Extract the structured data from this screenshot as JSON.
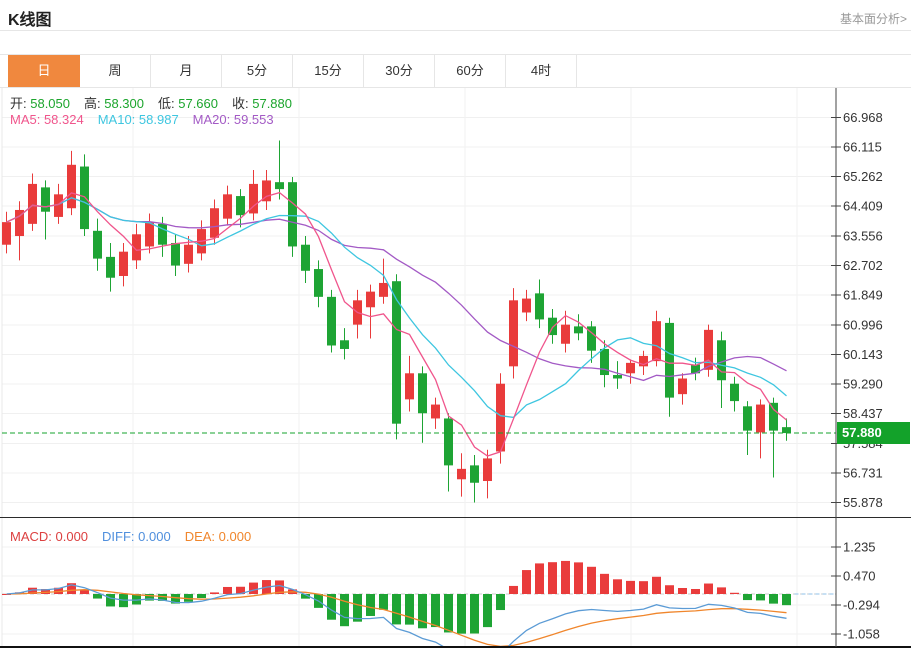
{
  "header": {
    "title": "K线图",
    "link": "基本面分析>"
  },
  "tabs": {
    "items": [
      "日",
      "周",
      "月",
      "5分",
      "15分",
      "30分",
      "60分",
      "4时"
    ],
    "active_index": 0
  },
  "main_chart": {
    "ohlc_labels": [
      {
        "label": "开:",
        "value": "58.050"
      },
      {
        "label": "高:",
        "value": "58.300"
      },
      {
        "label": "低:",
        "value": "57.660"
      },
      {
        "label": "收:",
        "value": "57.880"
      }
    ],
    "ohlc_value_color": "#1ca52d",
    "ma_labels": [
      {
        "label": "MA5:",
        "value": "58.324",
        "color": "#f0558c"
      },
      {
        "label": "MA10:",
        "value": "58.987",
        "color": "#3ec6e0"
      },
      {
        "label": "MA20:",
        "value": "59.553",
        "color": "#a35ac5"
      }
    ],
    "price_badge": "57.880"
  },
  "macd_panel": {
    "labels": [
      {
        "label": "MACD:",
        "value": "0.000",
        "color": "#dc4040"
      },
      {
        "label": "DIFF:",
        "value": "0.000",
        "color": "#4f8fdd"
      },
      {
        "label": "DEA:",
        "value": "0.000",
        "color": "#f0862c"
      }
    ]
  },
  "colors": {
    "accent": "#f0883e",
    "up": "#e93b3b",
    "down": "#1ea434",
    "ma5": "#f0558c",
    "ma10": "#3ec6e0",
    "ma20": "#a35ac5",
    "diff_line": "#5b9bd5",
    "dea_line": "#f0862c",
    "price_line": "#15a32d",
    "badge": "#13a22a",
    "link": "#999999"
  },
  "chart_data": {
    "type": "candlestick",
    "subpanel": "MACD(12,26,9)",
    "overlays": [
      "MA5",
      "MA10",
      "MA20"
    ],
    "current_price": 57.88,
    "price_ticks": [
      "66.968",
      "66.115",
      "65.262",
      "64.409",
      "63.556",
      "62.702",
      "61.849",
      "60.996",
      "60.143",
      "59.290",
      "58.437",
      "57.584",
      "56.731",
      "55.878"
    ],
    "macd_ticks": [
      "1.235",
      "0.470",
      "-0.294",
      "-1.058"
    ],
    "price_range": [
      55.45,
      67.81
    ],
    "macd_range": [
      -1.4,
      2.03
    ],
    "ohlc": [
      [
        63.3,
        64.25,
        63.05,
        63.95
      ],
      [
        63.55,
        64.55,
        62.85,
        64.3
      ],
      [
        63.9,
        65.35,
        63.7,
        65.05
      ],
      [
        64.95,
        65.15,
        63.45,
        64.25
      ],
      [
        64.1,
        65.05,
        63.9,
        64.75
      ],
      [
        64.35,
        66.0,
        64.15,
        65.6
      ],
      [
        65.55,
        65.9,
        63.55,
        63.75
      ],
      [
        63.7,
        64.05,
        62.55,
        62.9
      ],
      [
        62.95,
        63.35,
        61.95,
        62.35
      ],
      [
        62.4,
        63.35,
        62.1,
        63.1
      ],
      [
        62.85,
        63.9,
        62.6,
        63.6
      ],
      [
        63.25,
        64.2,
        63.05,
        63.95
      ],
      [
        63.9,
        64.1,
        62.95,
        63.3
      ],
      [
        63.35,
        63.6,
        62.4,
        62.7
      ],
      [
        62.75,
        63.55,
        62.5,
        63.3
      ],
      [
        63.05,
        64.0,
        62.85,
        63.75
      ],
      [
        63.5,
        64.6,
        63.3,
        64.35
      ],
      [
        64.05,
        65.0,
        63.85,
        64.75
      ],
      [
        64.7,
        64.9,
        63.8,
        64.15
      ],
      [
        64.2,
        65.45,
        64.0,
        65.05
      ],
      [
        64.55,
        65.45,
        64.3,
        65.15
      ],
      [
        65.1,
        66.3,
        64.6,
        64.9
      ],
      [
        65.1,
        65.25,
        62.95,
        63.25
      ],
      [
        63.3,
        63.55,
        62.2,
        62.55
      ],
      [
        62.6,
        62.85,
        61.5,
        61.8
      ],
      [
        61.8,
        62.0,
        60.2,
        60.4
      ],
      [
        60.55,
        60.9,
        60.0,
        60.3
      ],
      [
        61.0,
        62.0,
        60.6,
        61.7
      ],
      [
        61.5,
        62.15,
        60.6,
        61.95
      ],
      [
        61.8,
        62.9,
        61.6,
        62.2
      ],
      [
        62.25,
        62.45,
        57.7,
        58.15
      ],
      [
        58.85,
        60.1,
        58.5,
        59.6
      ],
      [
        59.6,
        59.8,
        57.6,
        58.45
      ],
      [
        58.3,
        58.9,
        58.0,
        58.7
      ],
      [
        58.3,
        58.45,
        56.2,
        56.95
      ],
      [
        56.55,
        57.3,
        56.05,
        56.85
      ],
      [
        56.95,
        57.25,
        55.88,
        56.45
      ],
      [
        56.5,
        57.4,
        56.0,
        57.15
      ],
      [
        57.35,
        59.6,
        57.0,
        59.3
      ],
      [
        59.8,
        62.05,
        59.45,
        61.7
      ],
      [
        61.35,
        62.0,
        61.1,
        61.75
      ],
      [
        61.9,
        62.3,
        60.9,
        61.15
      ],
      [
        61.2,
        61.45,
        60.45,
        60.7
      ],
      [
        60.45,
        61.4,
        60.2,
        61.0
      ],
      [
        60.95,
        61.3,
        60.55,
        60.75
      ],
      [
        60.95,
        61.1,
        59.9,
        60.25
      ],
      [
        60.3,
        60.55,
        59.2,
        59.55
      ],
      [
        59.55,
        59.95,
        59.15,
        59.45
      ],
      [
        59.6,
        60.0,
        59.3,
        59.9
      ],
      [
        59.8,
        60.25,
        59.55,
        60.1
      ],
      [
        59.95,
        61.4,
        59.8,
        61.1
      ],
      [
        61.05,
        61.2,
        58.35,
        58.9
      ],
      [
        59.0,
        59.6,
        58.7,
        59.45
      ],
      [
        59.85,
        60.05,
        59.4,
        59.6
      ],
      [
        59.7,
        61.0,
        59.5,
        60.85
      ],
      [
        60.55,
        60.8,
        58.6,
        59.4
      ],
      [
        59.3,
        59.5,
        58.5,
        58.8
      ],
      [
        58.65,
        58.8,
        57.25,
        57.95
      ],
      [
        57.9,
        58.85,
        57.15,
        58.7
      ],
      [
        58.75,
        58.9,
        56.6,
        57.95
      ],
      [
        58.05,
        58.3,
        57.66,
        57.88
      ]
    ]
  }
}
